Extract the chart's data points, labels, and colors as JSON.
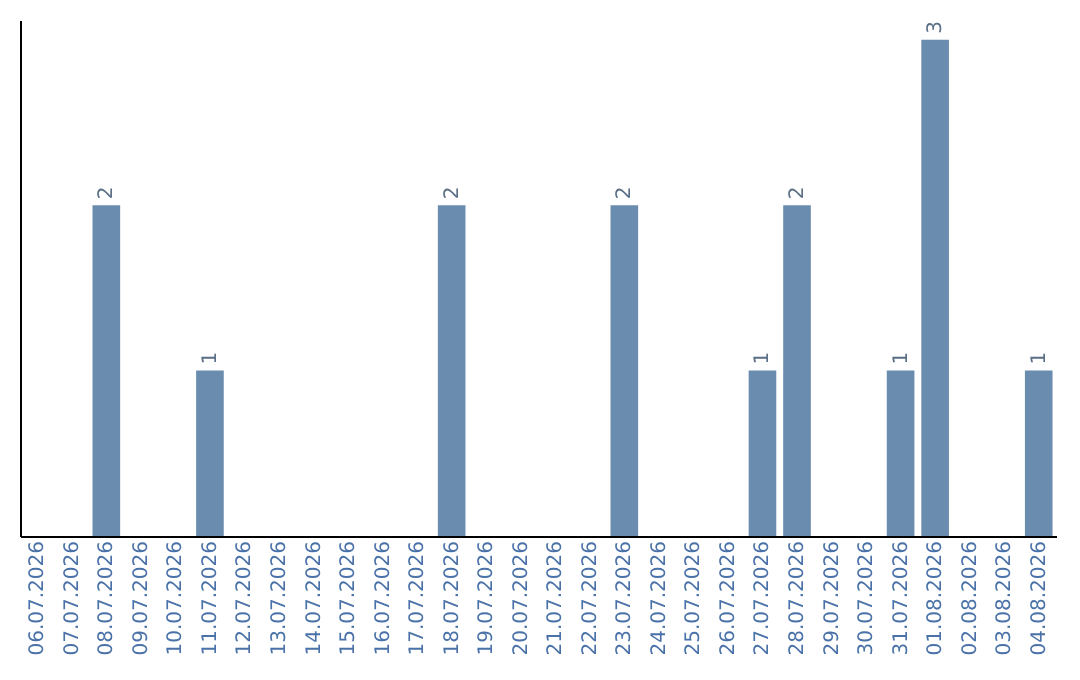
{
  "chart_data": {
    "type": "bar",
    "categories": [
      "06.07.2026",
      "07.07.2026",
      "08.07.2026",
      "09.07.2026",
      "10.07.2026",
      "11.07.2026",
      "12.07.2026",
      "13.07.2026",
      "14.07.2026",
      "15.07.2026",
      "16.07.2026",
      "17.07.2026",
      "18.07.2026",
      "19.07.2026",
      "20.07.2026",
      "21.07.2026",
      "22.07.2026",
      "23.07.2026",
      "24.07.2026",
      "25.07.2026",
      "26.07.2026",
      "27.07.2026",
      "28.07.2026",
      "29.07.2026",
      "30.07.2026",
      "31.07.2026",
      "01.08.2026",
      "02.08.2026",
      "03.08.2026",
      "04.08.2026"
    ],
    "values": [
      0,
      0,
      2,
      0,
      0,
      1,
      0,
      0,
      0,
      0,
      0,
      0,
      2,
      0,
      0,
      0,
      0,
      2,
      0,
      0,
      0,
      1,
      2,
      0,
      0,
      1,
      3,
      0,
      0,
      1
    ],
    "value_labels": [
      null,
      null,
      "2",
      null,
      null,
      "1",
      null,
      null,
      null,
      null,
      null,
      null,
      "2",
      null,
      null,
      null,
      null,
      "2",
      null,
      null,
      null,
      "1",
      "2",
      null,
      null,
      "1",
      "3",
      null,
      null,
      "1"
    ],
    "color": "#6a8caf",
    "ylim": [
      0,
      3.12
    ],
    "tick_labels": "x"
  }
}
